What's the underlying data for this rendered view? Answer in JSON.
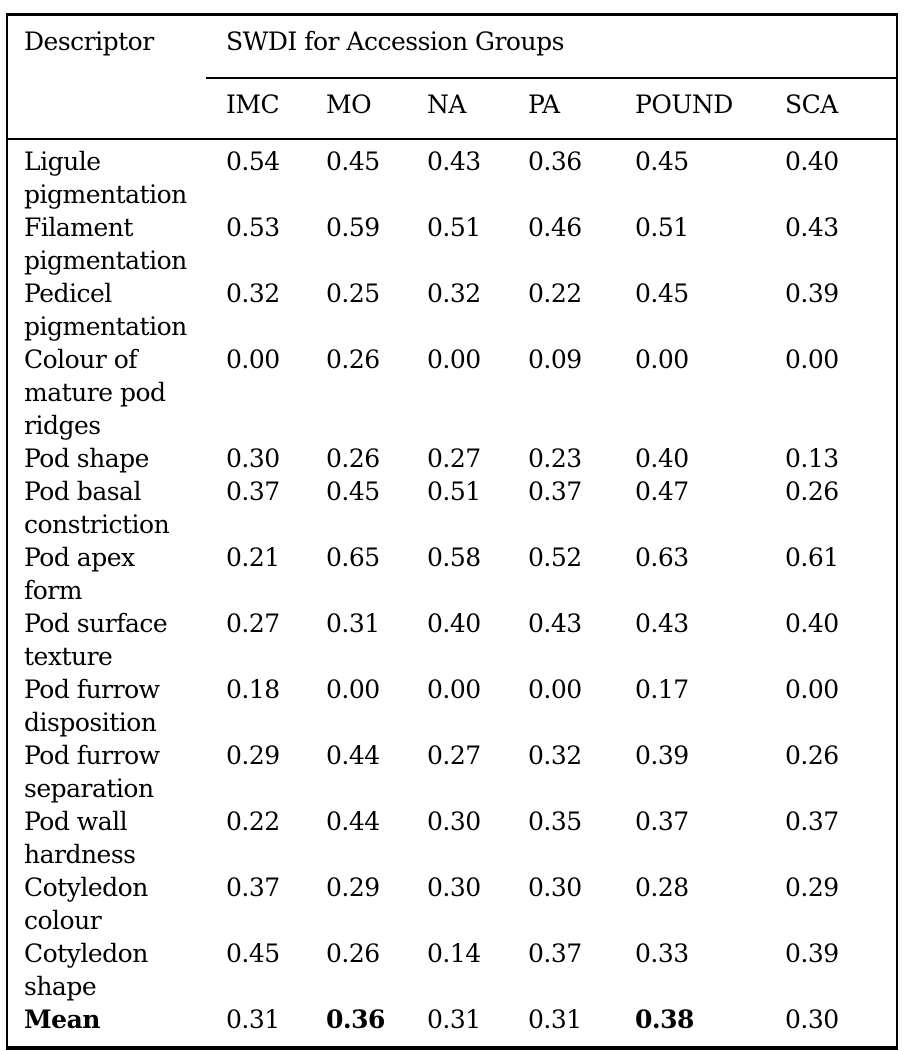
{
  "colors": {
    "background": "#ffffff",
    "border": "#000000",
    "text": "#000000"
  },
  "table": {
    "header": {
      "descriptor_label": "Descriptor",
      "group_label": "SWDI for Accession Groups",
      "columns": [
        "IMC",
        "MO",
        "NA",
        "PA",
        "POUND",
        "SCA"
      ]
    },
    "rows": [
      {
        "descriptor": "Ligule pigmentation",
        "bold_label": false,
        "values": [
          "0.54",
          "0.45",
          "0.43",
          "0.36",
          "0.45",
          "0.40"
        ],
        "bold_values": [
          false,
          false,
          false,
          false,
          false,
          false
        ]
      },
      {
        "descriptor": "Filament pigmentation",
        "bold_label": false,
        "values": [
          "0.53",
          "0.59",
          "0.51",
          "0.46",
          "0.51",
          "0.43"
        ],
        "bold_values": [
          false,
          false,
          false,
          false,
          false,
          false
        ]
      },
      {
        "descriptor": "Pedicel pigmentation",
        "bold_label": false,
        "values": [
          "0.32",
          "0.25",
          "0.32",
          "0.22",
          "0.45",
          "0.39"
        ],
        "bold_values": [
          false,
          false,
          false,
          false,
          false,
          false
        ]
      },
      {
        "descriptor": "Colour of mature pod ridges",
        "bold_label": false,
        "values": [
          "0.00",
          "0.26",
          "0.00",
          "0.09",
          "0.00",
          "0.00"
        ],
        "bold_values": [
          false,
          false,
          false,
          false,
          false,
          false
        ]
      },
      {
        "descriptor": "Pod shape",
        "bold_label": false,
        "values": [
          "0.30",
          "0.26",
          "0.27",
          "0.23",
          "0.40",
          "0.13"
        ],
        "bold_values": [
          false,
          false,
          false,
          false,
          false,
          false
        ]
      },
      {
        "descriptor": "Pod basal constriction",
        "bold_label": false,
        "values": [
          "0.37",
          "0.45",
          "0.51",
          "0.37",
          "0.47",
          "0.26"
        ],
        "bold_values": [
          false,
          false,
          false,
          false,
          false,
          false
        ]
      },
      {
        "descriptor": "Pod apex form",
        "bold_label": false,
        "values": [
          "0.21",
          "0.65",
          "0.58",
          "0.52",
          "0.63",
          "0.61"
        ],
        "bold_values": [
          false,
          false,
          false,
          false,
          false,
          false
        ]
      },
      {
        "descriptor": "Pod surface texture",
        "bold_label": false,
        "values": [
          "0.27",
          "0.31",
          "0.40",
          "0.43",
          "0.43",
          "0.40"
        ],
        "bold_values": [
          false,
          false,
          false,
          false,
          false,
          false
        ]
      },
      {
        "descriptor": "Pod furrow disposition",
        "bold_label": false,
        "values": [
          "0.18",
          "0.00",
          "0.00",
          "0.00",
          "0.17",
          "0.00"
        ],
        "bold_values": [
          false,
          false,
          false,
          false,
          false,
          false
        ]
      },
      {
        "descriptor": "Pod furrow separation",
        "bold_label": false,
        "values": [
          "0.29",
          "0.44",
          "0.27",
          "0.32",
          "0.39",
          "0.26"
        ],
        "bold_values": [
          false,
          false,
          false,
          false,
          false,
          false
        ]
      },
      {
        "descriptor": "Pod wall hardness",
        "bold_label": false,
        "values": [
          "0.22",
          "0.44",
          "0.30",
          "0.35",
          "0.37",
          "0.37"
        ],
        "bold_values": [
          false,
          false,
          false,
          false,
          false,
          false
        ]
      },
      {
        "descriptor": "Cotyledon colour",
        "bold_label": false,
        "values": [
          "0.37",
          "0.29",
          "0.30",
          "0.30",
          "0.28",
          "0.29"
        ],
        "bold_values": [
          false,
          false,
          false,
          false,
          false,
          false
        ]
      },
      {
        "descriptor": "Cotyledon shape",
        "bold_label": false,
        "values": [
          "0.45",
          "0.26",
          "0.14",
          "0.37",
          "0.33",
          "0.39"
        ],
        "bold_values": [
          false,
          false,
          false,
          false,
          false,
          false
        ]
      },
      {
        "descriptor": "Mean",
        "bold_label": true,
        "values": [
          "0.31",
          "0.36",
          "0.31",
          "0.31",
          "0.38",
          "0.30"
        ],
        "bold_values": [
          false,
          true,
          false,
          false,
          true,
          false
        ]
      }
    ]
  }
}
